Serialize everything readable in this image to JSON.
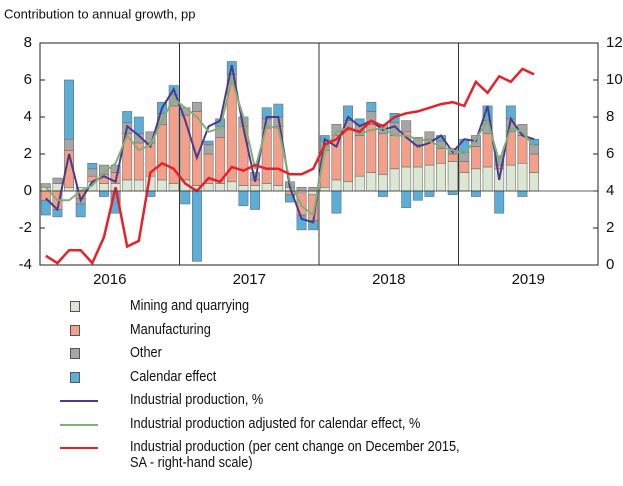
{
  "chart_data": {
    "type": "bar",
    "title": "Contribution to annual growth, pp",
    "years": [
      "2016",
      "2017",
      "2018",
      "2019"
    ],
    "categories": [
      null,
      null,
      null,
      null,
      null,
      null,
      null,
      null,
      null,
      null,
      null,
      null,
      null,
      null,
      null,
      null,
      null,
      null,
      null,
      null,
      null,
      null,
      null,
      null,
      null,
      null,
      null,
      null,
      null,
      null,
      null,
      null,
      null,
      null,
      null,
      null,
      null,
      null,
      null,
      null,
      null,
      null,
      null,
      null,
      null,
      null,
      null,
      null
    ],
    "ylim": [
      -4,
      8
    ],
    "yticks": [
      -4,
      -2,
      0,
      2,
      4,
      6,
      8
    ],
    "y2lim": [
      0,
      12
    ],
    "y2ticks": [
      0,
      2,
      4,
      6,
      8,
      10,
      12
    ],
    "series": [
      {
        "name": "Mining and quarrying",
        "kind": "bar",
        "color": "#dbe7d2",
        "values": [
          0.2,
          0.4,
          0.2,
          0.2,
          0.5,
          0.4,
          0.4,
          0.6,
          0.6,
          0.8,
          0.6,
          0.4,
          0.6,
          0.3,
          0.4,
          0.4,
          0.5,
          0.3,
          0.3,
          0.4,
          0.3,
          0.2,
          -0.1,
          -0.2,
          0.2,
          0.6,
          0.5,
          0.8,
          1.0,
          0.9,
          1.2,
          1.3,
          1.3,
          1.4,
          1.5,
          1.6,
          1.0,
          1.2,
          1.3,
          1.2,
          1.4,
          1.5,
          1.0,
          null,
          null,
          null,
          null,
          null
        ]
      },
      {
        "name": "Manufacturing",
        "kind": "bar",
        "color": "#f2a08a",
        "values": [
          -0.5,
          -1.0,
          2.0,
          -0.4,
          0.3,
          0.5,
          0.6,
          2.5,
          2.0,
          1.8,
          3.0,
          4.2,
          3.5,
          4.0,
          1.6,
          2.5,
          5.3,
          3.2,
          0.3,
          3.0,
          3.2,
          -0.2,
          -1.2,
          -1.4,
          2.0,
          2.4,
          2.8,
          2.2,
          2.6,
          2.2,
          1.8,
          1.9,
          1.2,
          1.4,
          0.8,
          0.4,
          0.6,
          1.2,
          1.8,
          0.2,
          1.8,
          1.5,
          1.0,
          null,
          null,
          null,
          null,
          null
        ]
      },
      {
        "name": "Other",
        "kind": "bar",
        "color": "#a6a6a6",
        "values": [
          0.2,
          0.3,
          0.6,
          -0.3,
          0.4,
          0.5,
          0.4,
          0.6,
          0.5,
          0.6,
          0.6,
          0.6,
          0.4,
          0.5,
          0.5,
          0.6,
          0.5,
          0.5,
          0.4,
          0.5,
          0.5,
          0.3,
          0.2,
          0.2,
          0.5,
          0.6,
          0.5,
          0.6,
          0.7,
          0.5,
          0.7,
          0.6,
          0.4,
          0.4,
          0.4,
          0.3,
          0.5,
          0.6,
          0.7,
          0.5,
          0.7,
          0.6,
          0.5,
          null,
          null,
          null,
          null,
          null
        ]
      },
      {
        "name": "Calendar effect",
        "kind": "bar",
        "color": "#5aaed8",
        "values": [
          -0.8,
          -0.4,
          3.2,
          -0.7,
          0.3,
          -0.3,
          -1.2,
          0.6,
          0.9,
          -0.3,
          0.6,
          0.5,
          -0.7,
          -3.8,
          0.2,
          0.4,
          0.7,
          -0.8,
          -1.0,
          0.6,
          0.7,
          -0.4,
          -0.8,
          -0.5,
          0.3,
          -1.2,
          0.8,
          0.3,
          0.5,
          -0.3,
          0.5,
          -0.9,
          -0.5,
          -0.3,
          0.3,
          -0.2,
          0.7,
          -0.3,
          0.8,
          -1.2,
          0.7,
          -0.3,
          0.3,
          null,
          null,
          null,
          null,
          null
        ]
      },
      {
        "name": "Industrial production, %",
        "kind": "line",
        "color": "#4b3b8c",
        "values": [
          -0.4,
          -1.0,
          2.0,
          -0.5,
          0.5,
          0.8,
          0.5,
          3.5,
          3.0,
          2.4,
          4.5,
          5.5,
          3.8,
          1.8,
          3.5,
          3.8,
          6.8,
          3.4,
          0.5,
          4.0,
          4.0,
          0.2,
          -1.5,
          -1.7,
          2.8,
          2.4,
          4.0,
          3.5,
          3.8,
          3.3,
          3.5,
          2.9,
          2.4,
          2.6,
          3.0,
          2.1,
          2.8,
          2.7,
          4.6,
          0.6,
          3.9,
          3.0,
          2.8,
          null,
          null,
          null,
          null,
          null
        ]
      },
      {
        "name": "Industrial production adjusted for calendar effect, %",
        "kind": "line",
        "color": "#7fb07a",
        "values": [
          0.2,
          -0.5,
          -0.5,
          0.0,
          0.3,
          1.0,
          1.5,
          3.0,
          2.2,
          2.5,
          3.8,
          5.0,
          4.5,
          4.0,
          3.2,
          3.4,
          6.0,
          4.0,
          1.2,
          3.5,
          3.4,
          0.5,
          -0.8,
          -1.3,
          2.2,
          3.2,
          3.4,
          3.1,
          3.3,
          3.4,
          3.0,
          3.0,
          2.8,
          2.7,
          2.4,
          2.2,
          2.0,
          2.8,
          3.8,
          1.6,
          3.4,
          3.2,
          2.4,
          null,
          null,
          null,
          null,
          null
        ]
      },
      {
        "name": "Industrial production (per cent change on December 2015,\nSA - right-hand scale)",
        "kind": "line",
        "axis": "y2",
        "color": "#e8202a",
        "values": [
          0.5,
          0.1,
          0.8,
          0.8,
          0.1,
          1.5,
          4.2,
          1.0,
          1.3,
          5.0,
          5.5,
          5.2,
          4.4,
          4.0,
          4.7,
          4.5,
          5.3,
          5.1,
          5.4,
          5.2,
          5.2,
          4.9,
          4.9,
          5.2,
          6.5,
          6.8,
          7.4,
          7.2,
          7.8,
          7.5,
          8.0,
          8.2,
          8.3,
          8.5,
          8.7,
          8.8,
          8.6,
          9.9,
          9.3,
          10.2,
          9.9,
          10.6,
          10.3,
          null,
          null,
          null,
          null,
          null
        ]
      }
    ]
  }
}
